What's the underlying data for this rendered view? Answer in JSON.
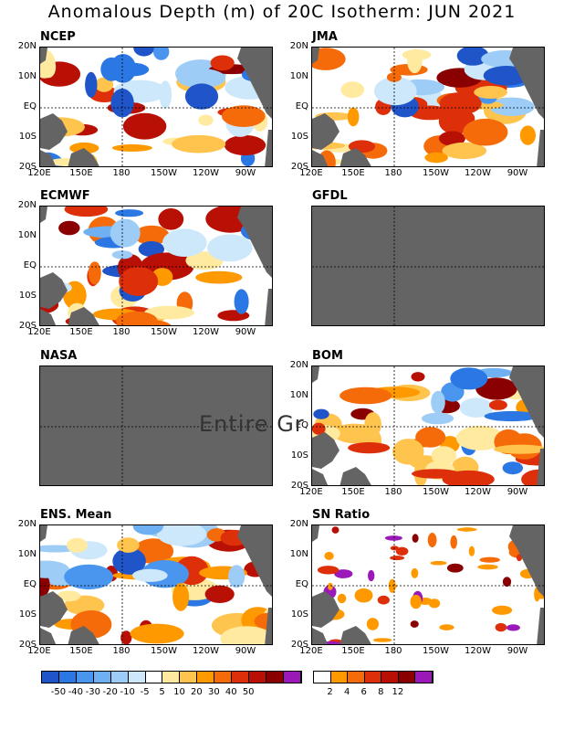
{
  "title": "Anomalous Depth (m) of 20C Isotherm: JUN 2021",
  "lat_labels": [
    "20N",
    "10N",
    "EQ",
    "10S",
    "20S"
  ],
  "lon_labels": [
    "120E",
    "150E",
    "180",
    "150W",
    "120W",
    "90W"
  ],
  "panels": [
    {
      "id": "ncep",
      "title": "NCEP",
      "has_data": true
    },
    {
      "id": "jma",
      "title": "JMA",
      "has_data": true
    },
    {
      "id": "ecmwf",
      "title": "ECMWF",
      "has_data": true
    },
    {
      "id": "gfdl",
      "title": "GFDL",
      "has_data": false
    },
    {
      "id": "nasa",
      "title": "NASA",
      "has_data": false
    },
    {
      "id": "bom",
      "title": "BOM",
      "has_data": true
    },
    {
      "id": "ens",
      "title": "ENS. Mean",
      "has_data": true
    },
    {
      "id": "sn",
      "title": "SN Ratio",
      "has_data": true
    }
  ],
  "overlay_text": "Entire Gr",
  "colorbar_anomaly": {
    "colors": [
      "#1f55c8",
      "#2b78e4",
      "#4a96ef",
      "#6fb0f2",
      "#9dcdf6",
      "#cde8fb",
      "#ffffff",
      "#ffeaa0",
      "#ffc44d",
      "#ff9900",
      "#f56b0a",
      "#dc2f0a",
      "#b81005",
      "#8a0000",
      "#9b19b8"
    ],
    "labels": [
      "-50",
      "-40",
      "-30",
      "-20",
      "-10",
      "-5",
      "5",
      "10",
      "20",
      "30",
      "40",
      "50"
    ]
  },
  "colorbar_sn": {
    "colors": [
      "#ffffff",
      "#ff9900",
      "#f56b0a",
      "#dc2f0a",
      "#b81005",
      "#8a0000",
      "#9b19b8"
    ],
    "labels": [
      "2",
      "4",
      "6",
      "8",
      "12"
    ]
  },
  "style": {
    "land_color": "#646464",
    "nodata_color": "#646464"
  }
}
